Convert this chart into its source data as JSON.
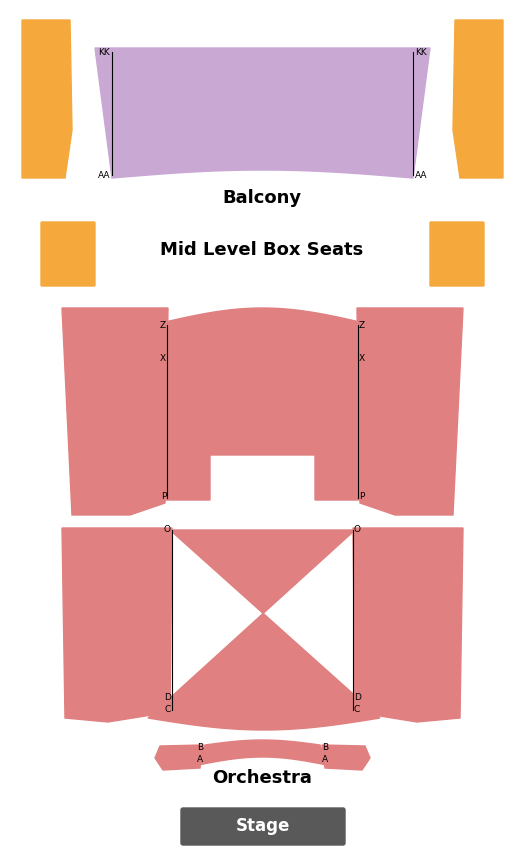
{
  "bg_color": "#ffffff",
  "balcony_color": "#c9a8d4",
  "orchestra_color": "#e08080",
  "box_color": "#f5a83c",
  "stage_color": "#595959",
  "stage_text_color": "#ffffff",
  "balcony_label": "Balcony",
  "midlevel_label": "Mid Level Box Seats",
  "orchestra_label": "Orchestra",
  "stage_label": "Stage"
}
